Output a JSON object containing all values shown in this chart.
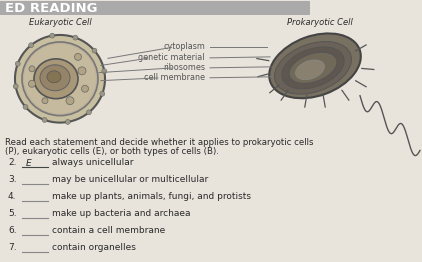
{
  "background_color": "#e8e4dc",
  "header_text": "ED READING",
  "eukaryotic_label": "Eukaryotic Cell",
  "prokaryotic_label": "Prokaryotic Cell",
  "labels_diagram": [
    "cytoplasm",
    "genetic material",
    "ribosomes",
    "cell membrane"
  ],
  "instructions_line1": "Read each statement and decide whether it applies to prokaryotic cells",
  "instructions_line2": "(P), eukaryotic cells (E), or both types of cells (B).",
  "questions": [
    {
      "num": "2.",
      "blank": "E",
      "underline": true,
      "text": "always unicellular"
    },
    {
      "num": "3.",
      "blank": "",
      "underline": true,
      "text": "may be unicellular or multicellular"
    },
    {
      "num": "4.",
      "blank": "",
      "underline": true,
      "text": "make up plants, animals, fungi, and protists"
    },
    {
      "num": "5.",
      "blank": "",
      "underline": true,
      "text": "make up bacteria and archaea"
    },
    {
      "num": "6.",
      "blank": "",
      "underline": true,
      "text": "contain a cell membrane"
    },
    {
      "num": "7.",
      "blank": "",
      "underline": true,
      "text": "contain organelles"
    }
  ],
  "text_color": "#2a2a2a",
  "gray_text": "#555555",
  "font_size_header": 9.5,
  "font_size_label": 6.0,
  "font_size_diagram_label": 5.8,
  "font_size_body": 6.2,
  "font_size_question": 6.5
}
